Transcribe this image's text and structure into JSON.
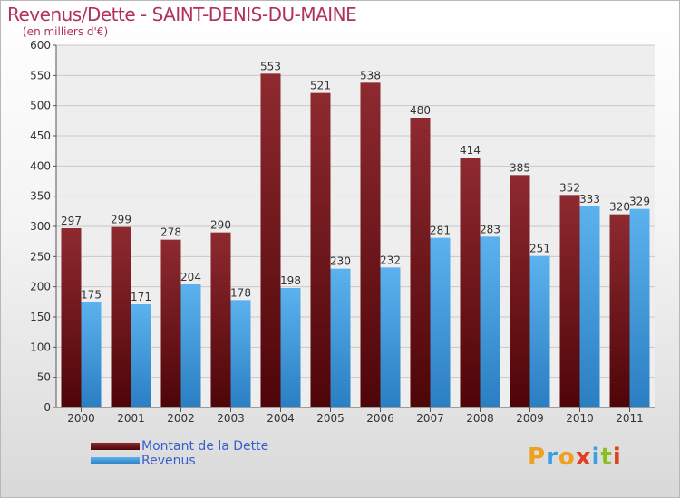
{
  "title": "Revenus/Dette - SAINT-DENIS-DU-MAINE",
  "subtitle": "(en milliers d'€)",
  "logo": {
    "text": "Proxiti",
    "letters": [
      "P",
      "r",
      "o",
      "x",
      "i",
      "t",
      "i"
    ],
    "colors": [
      "#f0a020",
      "#3aa0e0",
      "#f0a020",
      "#e04020",
      "#3aa0e0",
      "#88c020",
      "#e04020"
    ]
  },
  "chart_data": {
    "type": "bar",
    "categories": [
      "2000",
      "2001",
      "2002",
      "2003",
      "2004",
      "2005",
      "2006",
      "2007",
      "2008",
      "2009",
      "2010",
      "2011"
    ],
    "series": [
      {
        "name": "Montant de la Dette",
        "color": "#7a1a20",
        "values": [
          297,
          299,
          278,
          290,
          553,
          521,
          538,
          480,
          414,
          385,
          352,
          320
        ]
      },
      {
        "name": "Revenus",
        "color": "#4aa4e4",
        "values": [
          175,
          171,
          204,
          178,
          198,
          230,
          232,
          281,
          283,
          251,
          333,
          329
        ]
      }
    ],
    "ylim": [
      0,
      600
    ],
    "yticks": [
      0,
      50,
      100,
      150,
      200,
      250,
      300,
      350,
      400,
      450,
      500,
      550,
      600
    ],
    "grid": true,
    "legend": "bottom-left"
  }
}
